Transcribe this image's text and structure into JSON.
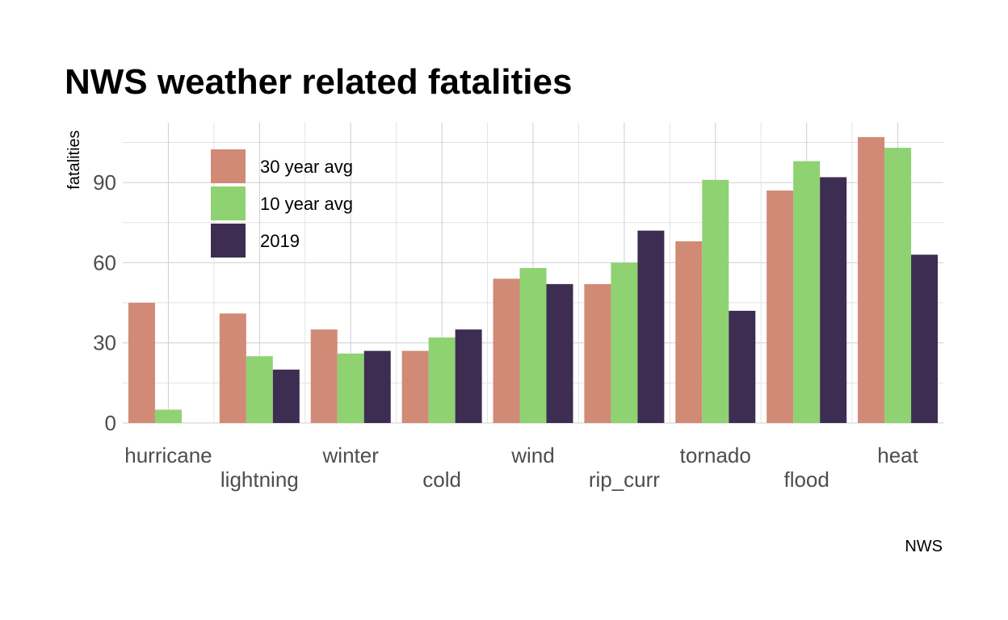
{
  "chart_data": {
    "type": "bar",
    "title": "NWS weather related fatalities",
    "ylabel": "fatalities",
    "xlabel": "",
    "caption": "NWS",
    "ylim": [
      0,
      112
    ],
    "yticks": [
      0,
      30,
      60,
      90
    ],
    "legend_position": "top-left",
    "categories": [
      "hurricane",
      "lightning",
      "winter",
      "cold",
      "wind",
      "rip_curr",
      "tornado",
      "flood",
      "heat"
    ],
    "series": [
      {
        "name": "30 year avg",
        "color": "#d08a76",
        "values": [
          45,
          41,
          35,
          27,
          54,
          52,
          68,
          87,
          107
        ]
      },
      {
        "name": "10 year avg",
        "color": "#8fd272",
        "values": [
          5,
          25,
          26,
          32,
          58,
          60,
          91,
          98,
          103
        ]
      },
      {
        "name": "2019",
        "color": "#3e2d53",
        "values": [
          0,
          20,
          27,
          35,
          52,
          72,
          42,
          92,
          63
        ]
      }
    ]
  }
}
